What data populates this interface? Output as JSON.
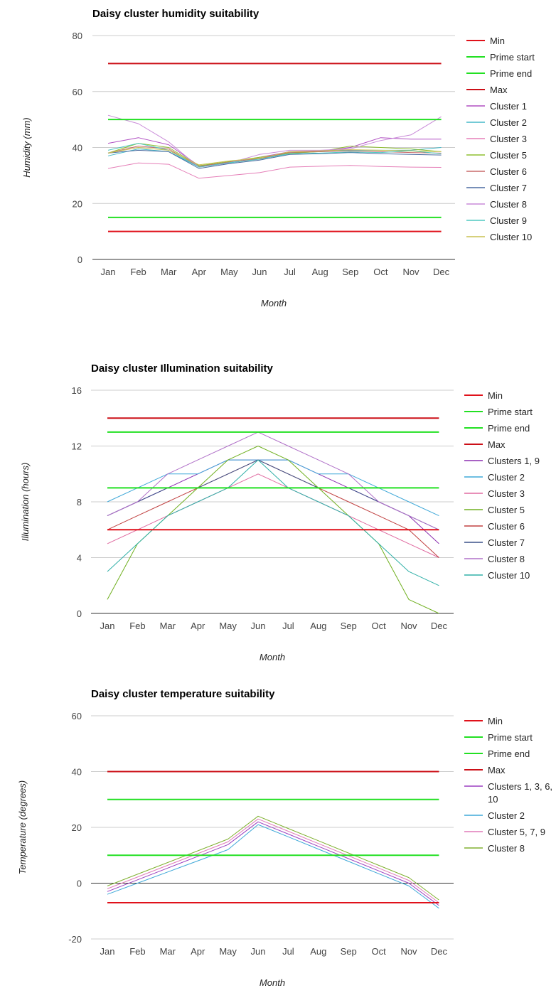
{
  "chart_data": [
    {
      "type": "line",
      "title": "Daisy cluster humidity suitability",
      "xlabel": "Month",
      "ylabel": "Humidity (mm)",
      "categories": [
        "Jan",
        "Feb",
        "Mar",
        "Apr",
        "May",
        "Jun",
        "Jul",
        "Aug",
        "Sep",
        "Oct",
        "Nov",
        "Dec"
      ],
      "ylim": [
        0,
        80
      ],
      "yticks": [
        0,
        20,
        40,
        60,
        80
      ],
      "grid": true,
      "legend": "right",
      "series": [
        {
          "name": "Min",
          "color": "#e0111a",
          "width": 2,
          "values": [
            10,
            10,
            10,
            10,
            10,
            10,
            10,
            10,
            10,
            10,
            10,
            10
          ]
        },
        {
          "name": "Prime start",
          "color": "#22e022",
          "width": 2,
          "values": [
            15,
            15,
            15,
            15,
            15,
            15,
            15,
            15,
            15,
            15,
            15,
            15
          ]
        },
        {
          "name": "Prime end",
          "color": "#22e022",
          "width": 2,
          "values": [
            50,
            50,
            50,
            50,
            50,
            50,
            50,
            50,
            50,
            50,
            50,
            50
          ]
        },
        {
          "name": "Max",
          "color": "#cc0f17",
          "width": 2,
          "values": [
            70,
            70,
            70,
            70,
            70,
            70,
            70,
            70,
            70,
            70,
            70,
            70
          ]
        },
        {
          "name": "Cluster 1",
          "color": "#b04fc2",
          "width": 1,
          "values": [
            41.5,
            43.5,
            41,
            33.5,
            34.5,
            36.5,
            38.5,
            38.5,
            40,
            43.5,
            43,
            43
          ]
        },
        {
          "name": "Cluster 2",
          "color": "#45b8c8",
          "width": 1,
          "values": [
            37,
            39.5,
            38.5,
            33,
            34.5,
            36,
            38,
            38.5,
            39,
            39,
            39,
            40
          ]
        },
        {
          "name": "Cluster 3",
          "color": "#e57fb8",
          "width": 1,
          "values": [
            32.5,
            34.5,
            34,
            29,
            30,
            31,
            33,
            33.3,
            33.6,
            33.2,
            33,
            32.9
          ]
        },
        {
          "name": "Cluster 5",
          "color": "#8fbf30",
          "width": 1,
          "values": [
            38,
            41.5,
            40,
            33.5,
            35,
            36.5,
            38,
            38.5,
            40.5,
            40,
            39.5,
            38.5
          ]
        },
        {
          "name": "Cluster 6",
          "color": "#c86a6a",
          "width": 1,
          "values": [
            38,
            40.5,
            39.5,
            33.2,
            34.8,
            36,
            38.3,
            38.5,
            38.8,
            38.5,
            38.2,
            38
          ]
        },
        {
          "name": "Cluster 7",
          "color": "#4a6aa0",
          "width": 1,
          "values": [
            38,
            39,
            38.5,
            32.5,
            34.2,
            35.5,
            37.5,
            37.8,
            38.2,
            37.8,
            37.5,
            37.3
          ]
        },
        {
          "name": "Cluster 8",
          "color": "#c98ad8",
          "width": 1,
          "values": [
            51.5,
            48.5,
            42,
            33,
            34.5,
            37.5,
            39,
            39,
            39.5,
            42.5,
            44.5,
            51
          ]
        },
        {
          "name": "Cluster 9",
          "color": "#4fc8c0",
          "width": 1,
          "values": [
            39,
            41.5,
            39,
            33,
            34.6,
            35.8,
            37.8,
            38,
            38.4,
            38.2,
            38.8,
            37.8
          ]
        },
        {
          "name": "Cluster 10",
          "color": "#c8c050",
          "width": 1,
          "values": [
            38,
            40,
            39,
            33.8,
            35.2,
            36.2,
            38.5,
            38.8,
            39.2,
            39,
            38.8,
            38.5
          ]
        }
      ]
    },
    {
      "type": "line",
      "title": "Daisy cluster Illumination suitability",
      "xlabel": "Month",
      "ylabel": "Illumination (hours)",
      "categories": [
        "Jan",
        "Feb",
        "Mar",
        "Apr",
        "May",
        "Jun",
        "Jul",
        "Aug",
        "Sep",
        "Oct",
        "Nov",
        "Dec"
      ],
      "ylim": [
        0,
        16
      ],
      "yticks": [
        0,
        4,
        8,
        12,
        16
      ],
      "grid": true,
      "legend": "right",
      "series": [
        {
          "name": "Min",
          "color": "#e0111a",
          "width": 2,
          "values": [
            6,
            6,
            6,
            6,
            6,
            6,
            6,
            6,
            6,
            6,
            6,
            6
          ]
        },
        {
          "name": "Prime start",
          "color": "#22e022",
          "width": 2,
          "values": [
            9,
            9,
            9,
            9,
            9,
            9,
            9,
            9,
            9,
            9,
            9,
            9
          ]
        },
        {
          "name": "Prime end",
          "color": "#22e022",
          "width": 2,
          "values": [
            13,
            13,
            13,
            13,
            13,
            13,
            13,
            13,
            13,
            13,
            13,
            13
          ]
        },
        {
          "name": "Max",
          "color": "#cc0f17",
          "width": 2,
          "values": [
            14,
            14,
            14,
            14,
            14,
            14,
            14,
            14,
            14,
            14,
            14,
            14
          ]
        },
        {
          "name": "Clusters 1, 9",
          "color": "#8b2fb0",
          "width": 1,
          "values": [
            7,
            8,
            9,
            10,
            11,
            11,
            11,
            10,
            9,
            8,
            7,
            5
          ]
        },
        {
          "name": "Cluster 2",
          "color": "#3fa8d8",
          "width": 1,
          "values": [
            8,
            9,
            10,
            10,
            11,
            11,
            11,
            10,
            10,
            9,
            8,
            7
          ]
        },
        {
          "name": "Cluster 3",
          "color": "#e06aa0",
          "width": 1,
          "values": [
            5,
            6,
            7,
            8,
            9,
            10,
            9,
            8,
            7,
            6,
            5,
            4
          ]
        },
        {
          "name": "Cluster 5",
          "color": "#70b020",
          "width": 1,
          "values": [
            1,
            5,
            7,
            9,
            11,
            12,
            11,
            9,
            7,
            5,
            1,
            0
          ]
        },
        {
          "name": "Cluster 6",
          "color": "#c04040",
          "width": 1,
          "values": [
            6,
            7,
            8,
            9,
            10,
            11,
            10,
            9,
            8,
            7,
            6,
            4
          ]
        },
        {
          "name": "Cluster 7",
          "color": "#3a5088",
          "width": 1,
          "values": [
            7,
            8,
            9,
            9,
            10,
            11,
            10,
            9,
            9,
            8,
            7,
            6
          ]
        },
        {
          "name": "Cluster 8",
          "color": "#b070c8",
          "width": 1,
          "values": [
            7,
            8,
            10,
            11,
            12,
            13,
            12,
            11,
            10,
            8,
            7,
            6
          ]
        },
        {
          "name": "Cluster 10",
          "color": "#30b0a8",
          "width": 1,
          "values": [
            3,
            5,
            7,
            8,
            9,
            11,
            9,
            8,
            7,
            5,
            3,
            2
          ]
        }
      ]
    },
    {
      "type": "line",
      "title": "Daisy cluster temperature suitability",
      "xlabel": "Month",
      "ylabel": "Temperature (degrees)",
      "categories": [
        "Jan",
        "Feb",
        "Mar",
        "Apr",
        "May",
        "Jun",
        "Jul",
        "Aug",
        "Sep",
        "Oct",
        "Nov",
        "Dec"
      ],
      "ylim": [
        -20,
        60
      ],
      "yticks": [
        -20,
        0,
        20,
        40,
        60
      ],
      "grid": true,
      "legend": "right",
      "series": [
        {
          "name": "Min",
          "color": "#e0111a",
          "width": 2,
          "values": [
            -7,
            -7,
            -7,
            -7,
            -7,
            -7,
            -7,
            -7,
            -7,
            -7,
            -7,
            -7
          ]
        },
        {
          "name": "Prime start",
          "color": "#22e022",
          "width": 2,
          "values": [
            10,
            10,
            10,
            10,
            10,
            10,
            10,
            10,
            10,
            10,
            10,
            10
          ]
        },
        {
          "name": "Prime end",
          "color": "#22e022",
          "width": 2,
          "values": [
            30,
            30,
            30,
            30,
            30,
            30,
            30,
            30,
            30,
            30,
            30,
            30
          ]
        },
        {
          "name": "Max",
          "color": "#cc0f17",
          "width": 2,
          "values": [
            40,
            40,
            40,
            40,
            40,
            40,
            40,
            40,
            40,
            40,
            40,
            40
          ]
        },
        {
          "name": "Clusters 1, 3, 6, 10",
          "color": "#9b3fc0",
          "width": 1,
          "values": [
            -3,
            1.2,
            5.4,
            9.6,
            13.8,
            22,
            17.6,
            13.2,
            8.8,
            4.4,
            0,
            -8
          ]
        },
        {
          "name": "Cluster 2",
          "color": "#3fa8d8",
          "width": 1,
          "values": [
            -4,
            0,
            4,
            8,
            12,
            21,
            16.6,
            12.2,
            7.8,
            3.4,
            -1,
            -9
          ]
        },
        {
          "name": "Cluster 5, 7, 9",
          "color": "#e07ab8",
          "width": 1,
          "values": [
            -2,
            2.2,
            6.4,
            10.6,
            14.8,
            23,
            18.6,
            14.2,
            9.8,
            5.4,
            1,
            -7
          ]
        },
        {
          "name": "Cluster 8",
          "color": "#80b030",
          "width": 1,
          "values": [
            -1,
            3.2,
            7.4,
            11.6,
            15.8,
            24,
            19.6,
            15.2,
            10.8,
            6.4,
            2,
            -6
          ]
        }
      ]
    }
  ]
}
